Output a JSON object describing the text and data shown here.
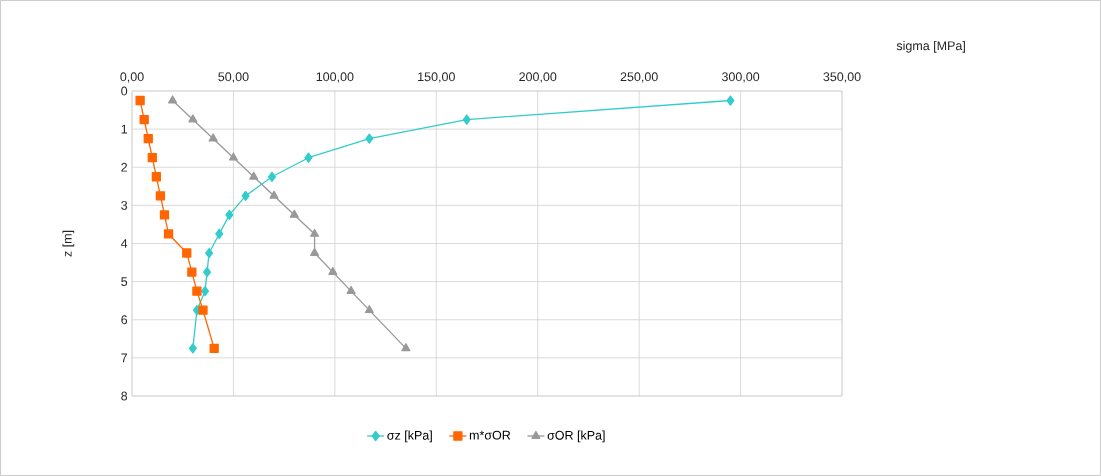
{
  "chart_data": {
    "type": "line",
    "xlabel": "sigma [MPa]",
    "ylabel": "z [m]",
    "xlim": [
      0,
      350
    ],
    "xticks": [
      {
        "value": 0,
        "label": "0,00"
      },
      {
        "value": 50,
        "label": "50,00"
      },
      {
        "value": 100,
        "label": "100,00"
      },
      {
        "value": 150,
        "label": "150,00"
      },
      {
        "value": 200,
        "label": "200,00"
      },
      {
        "value": 250,
        "label": "250,00"
      },
      {
        "value": 300,
        "label": "300,00"
      },
      {
        "value": 350,
        "label": "350,00"
      }
    ],
    "ylim": [
      8,
      0
    ],
    "yticks": [
      0,
      1,
      2,
      3,
      4,
      5,
      6,
      7,
      8
    ],
    "grid": true,
    "legend": "bottom",
    "line_style": "solid",
    "series": [
      {
        "name": "σz [kPa]",
        "color": "#33cccc",
        "marker": "diamond",
        "x": [
          295,
          165,
          117,
          87,
          69,
          56,
          48,
          43,
          38,
          37,
          36,
          32,
          30
        ],
        "values": [
          0.25,
          0.75,
          1.25,
          1.75,
          2.25,
          2.75,
          3.25,
          3.75,
          4.25,
          4.75,
          5.25,
          5.75,
          6.75
        ]
      },
      {
        "name": "m*σOR",
        "color": "#ff6600",
        "marker": "square",
        "x": [
          4,
          6,
          8,
          10,
          12,
          14,
          16,
          18,
          27,
          29.5,
          32,
          35,
          40.5
        ],
        "values": [
          0.25,
          0.75,
          1.25,
          1.75,
          2.25,
          2.75,
          3.25,
          3.75,
          4.25,
          4.75,
          5.25,
          5.75,
          6.75
        ]
      },
      {
        "name": "σOR [kPa]",
        "color": "#999999",
        "marker": "triangle",
        "x": [
          20,
          30,
          40,
          50,
          60,
          70,
          80,
          90,
          90,
          99,
          108,
          117,
          135
        ],
        "values": [
          0.25,
          0.75,
          1.25,
          1.75,
          2.25,
          2.75,
          3.25,
          3.75,
          4.25,
          4.75,
          5.25,
          5.75,
          6.75
        ]
      }
    ]
  }
}
